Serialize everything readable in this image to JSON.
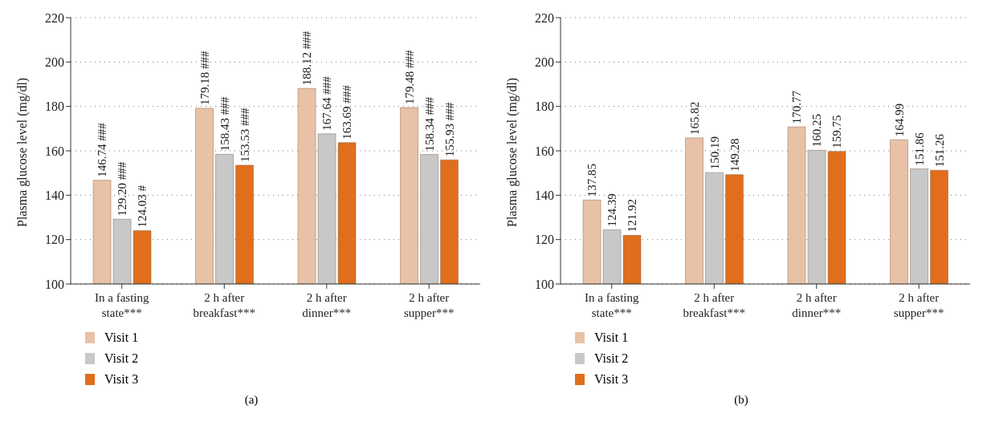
{
  "chart_data": [
    {
      "type": "bar",
      "ylabel": "Plasma glucose level (mg/dl)",
      "categories": [
        "In a fasting state***",
        "2 h after breakfast***",
        "2 h after dinner***",
        "2 h after supper***"
      ],
      "series": [
        {
          "name": "Visit 1",
          "color": "#e8c2a6",
          "values": [
            146.74,
            179.18,
            188.12,
            179.48
          ],
          "value_labels": [
            "146.74 ###",
            "179.18 ###",
            "188.12 ###",
            "179.48 ###"
          ]
        },
        {
          "name": "Visit 2",
          "color": "#c8c8c8",
          "values": [
            129.2,
            158.43,
            167.64,
            158.34
          ],
          "value_labels": [
            "129.20 ###",
            "158.43 ###",
            "167.64 ###",
            "158.34 ###"
          ]
        },
        {
          "name": "Visit 3",
          "color": "#e06e1c",
          "values": [
            124.03,
            153.53,
            163.69,
            155.93
          ],
          "value_labels": [
            "124.03 #",
            "153.53 ###",
            "163.69 ###",
            "155.93 ###"
          ]
        }
      ],
      "ylim": [
        100,
        220
      ],
      "yticks": [
        100,
        120,
        140,
        160,
        180,
        200,
        220
      ],
      "grid": "y",
      "legend": "bottom left",
      "annotations": [
        "(a)"
      ]
    },
    {
      "type": "bar",
      "ylabel": "Plasma glucose level (mg/dl)",
      "categories": [
        "In a fasting state***",
        "2 h after breakfast***",
        "2 h after dinner***",
        "2 h after supper***"
      ],
      "series": [
        {
          "name": "Visit 1",
          "color": "#e8c2a6",
          "values": [
            137.85,
            165.82,
            170.77,
            164.99
          ]
        },
        {
          "name": "Visit 2",
          "color": "#c8c8c8",
          "values": [
            124.39,
            150.19,
            160.25,
            151.86
          ]
        },
        {
          "name": "Visit 3",
          "color": "#e06e1c",
          "values": [
            121.92,
            149.28,
            159.75,
            151.26
          ]
        }
      ],
      "ylim": [
        100,
        220
      ],
      "yticks": [
        100,
        120,
        140,
        160,
        180,
        200,
        220
      ],
      "grid": "y",
      "legend": "bottom left",
      "data_labels": true,
      "annotations": [
        "(b)"
      ]
    }
  ]
}
